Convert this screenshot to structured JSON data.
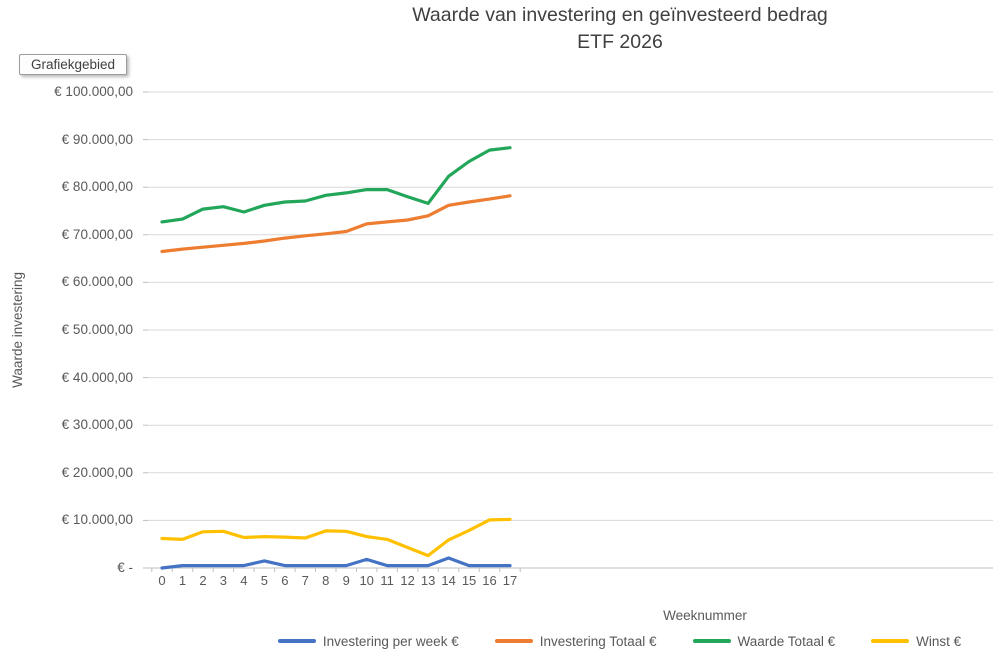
{
  "overlay": {
    "tooltip_label": "Grafiekgebied"
  },
  "colors": {
    "gridline": "#D9D9D9",
    "axis_line": "#BFBFBF",
    "tick_mark": "#BFBFBF",
    "title_text": "#404040",
    "axis_text": "#595959"
  },
  "chart_data": {
    "type": "line",
    "title": "Waarde van investering en geïnvesteerd bedrag",
    "subtitle": "ETF 2026",
    "xlabel": "Weeknummer",
    "ylabel": "Waarde investering",
    "grid": true,
    "legend_position": "bottom",
    "ylim": [
      0,
      100000
    ],
    "categories": [
      "0",
      "1",
      "2",
      "3",
      "4",
      "5",
      "6",
      "7",
      "8",
      "9",
      "10",
      "11",
      "12",
      "13",
      "14",
      "15",
      "16",
      "17"
    ],
    "y_ticks": [
      {
        "value": 0,
        "label": "€ -"
      },
      {
        "value": 10000,
        "label": "€ 10.000,00"
      },
      {
        "value": 20000,
        "label": "€ 20.000,00"
      },
      {
        "value": 30000,
        "label": "€ 30.000,00"
      },
      {
        "value": 40000,
        "label": "€ 40.000,00"
      },
      {
        "value": 50000,
        "label": "€ 50.000,00"
      },
      {
        "value": 60000,
        "label": "€ 60.000,00"
      },
      {
        "value": 70000,
        "label": "€ 70.000,00"
      },
      {
        "value": 80000,
        "label": "€ 80.000,00"
      },
      {
        "value": 90000,
        "label": "€ 90.000,00"
      },
      {
        "value": 100000,
        "label": "€ 100.000,00"
      }
    ],
    "series": [
      {
        "name": "Investering per week €",
        "color": "#4472C4",
        "values": [
          0,
          500,
          500,
          500,
          500,
          1500,
          500,
          500,
          500,
          500,
          1800,
          500,
          500,
          500,
          2100,
          500,
          500,
          500
        ]
      },
      {
        "name": "Investering Totaal €",
        "color": "#ED7D31",
        "values": [
          66500,
          67000,
          67400,
          67800,
          68200,
          68700,
          69300,
          69800,
          70200,
          70700,
          72300,
          72700,
          73100,
          74000,
          76200,
          76900,
          77500,
          78200
        ]
      },
      {
        "name": "Waarde Totaal €",
        "color": "#22A65A",
        "values": [
          72700,
          73300,
          75400,
          75900,
          74800,
          76200,
          76900,
          77100,
          78300,
          78800,
          79500,
          79500,
          78000,
          76600,
          82300,
          85400,
          87800,
          88300
        ]
      },
      {
        "name": "Winst €",
        "color": "#FFC000",
        "values": [
          6200,
          6000,
          7600,
          7700,
          6400,
          6600,
          6500,
          6300,
          7800,
          7700,
          6600,
          6000,
          4300,
          2600,
          5900,
          7900,
          10100,
          10200
        ]
      }
    ]
  }
}
